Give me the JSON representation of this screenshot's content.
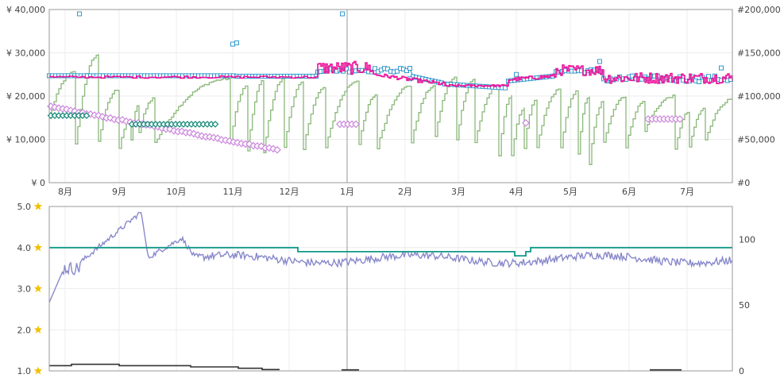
{
  "chart_data": [
    {
      "type": "line",
      "panel": "top",
      "left_axis": {
        "ticks": [
          0,
          10000,
          20000,
          30000,
          40000
        ],
        "tick_labels": [
          "¥ 0",
          "¥ 10,000",
          "¥ 20,000",
          "¥ 30,000",
          "¥ 40,000"
        ],
        "range": [
          0,
          40000
        ]
      },
      "right_axis": {
        "ticks": [
          0,
          50000,
          100000,
          150000,
          200000
        ],
        "tick_labels": [
          "#0",
          "#50,000",
          "#100,000",
          "#150,000",
          "#200,000"
        ],
        "range": [
          0,
          200000
        ]
      },
      "x_axis": {
        "months": [
          "8月",
          "9月",
          "10月",
          "11月",
          "12月",
          "1月",
          "2月",
          "3月",
          "4月",
          "5月",
          "6月",
          "7月"
        ]
      },
      "grid": true,
      "colors": {
        "sales_rank": "#8ab87a",
        "new_price": "#3399cc",
        "amazon_price": "#ee1199",
        "used_price": "#cc88dd",
        "collectible_price": "#118877"
      }
    },
    {
      "type": "line",
      "panel": "bottom",
      "left_axis": {
        "ticks": [
          1.0,
          2.0,
          3.0,
          4.0,
          5.0
        ],
        "tick_labels": [
          "1.0",
          "2.0",
          "3.0",
          "4.0",
          "5.0"
        ],
        "range": [
          1.0,
          5.0
        ]
      },
      "right_axis": {
        "ticks": [
          0,
          50,
          100
        ],
        "tick_labels": [
          "0",
          "50",
          "100"
        ],
        "range": [
          0,
          125
        ]
      },
      "grid": true,
      "colors": {
        "review_count": "#8888cc",
        "rating": "#119988",
        "offer_count": "#333333",
        "star": "#f0c000"
      }
    }
  ],
  "icons": {
    "star": "star-icon"
  }
}
